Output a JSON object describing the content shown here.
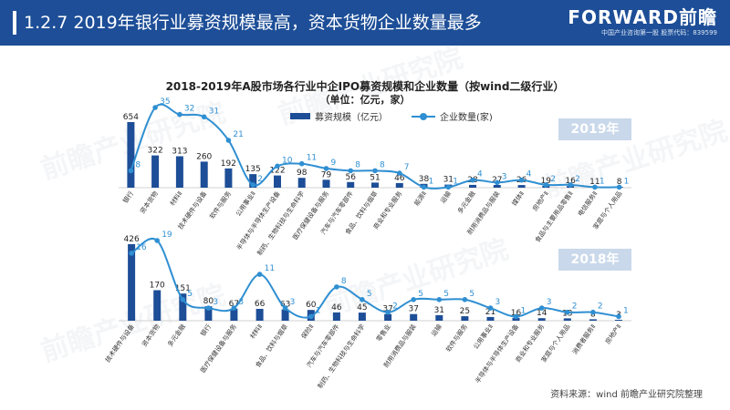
{
  "header": {
    "title": "1.2.7 2019年银行业募资规模最高，资本货物企业数量最多",
    "logo_brand": "FORWARD前瞻",
    "logo_tag": "中国产业咨询第一股  股票代码：839599"
  },
  "watermark_text": "前瞻产业研究院",
  "chart_title": "2018-2019年A股市场各行业中企IPO募资规模和企业数量（按wind二级行业）",
  "chart_subtitle": "（单位：亿元，家）",
  "legend": {
    "bar": "募资规模（亿元）",
    "line": "企业数量(家)"
  },
  "colors": {
    "bar": "#1d4e97",
    "line": "#2f8fd2",
    "header": "#1d4e97",
    "badge": "#c9d8ea"
  },
  "source": "资料来源：wind 前瞻产业研究院整理",
  "chart_data": [
    {
      "type": "bar",
      "year_label": "2019年",
      "categories": [
        "银行",
        "资本货物",
        "材料Ⅱ",
        "技术硬件与设备",
        "软件与服务",
        "公用事业Ⅱ",
        "半导体与半导体生产设备",
        "制药、生物科技与生命科学",
        "医疗保健设备与服务",
        "汽车与汽车零部件",
        "食品、饮料与烟草",
        "商业和专业服务",
        "能源Ⅱ",
        "运输",
        "多元金融",
        "耐用消费品与服装",
        "媒体Ⅱ",
        "房地产Ⅱ",
        "食品与主要用品零售Ⅱ",
        "电信服务Ⅱ",
        "家庭与个人用品"
      ],
      "series": [
        {
          "name": "募资规模（亿元）",
          "values": [
            654,
            322,
            313,
            260,
            192,
            135,
            122,
            98,
            79,
            56,
            51,
            46,
            38,
            31,
            28,
            27,
            26,
            19,
            16,
            11,
            8
          ]
        },
        {
          "name": "企业数量(家)",
          "values": [
            8,
            35,
            32,
            31,
            21,
            2,
            10,
            11,
            9,
            8,
            8,
            7,
            1,
            1,
            4,
            3,
            4,
            2,
            2,
            1,
            1
          ]
        }
      ]
    },
    {
      "type": "bar",
      "year_label": "2018年",
      "categories": [
        "技术硬件与设备",
        "资本货物",
        "多元金融",
        "银行",
        "医疗保健设备与服务",
        "材料Ⅱ",
        "食品、饮料与烟草",
        "保险Ⅱ",
        "汽车与汽车零部件",
        "制药、生物科技与生命科学",
        "零售业",
        "耐用消费品与服装",
        "运输",
        "软件与服务",
        "公用事业Ⅱ",
        "半导体与半导体生产设备",
        "商业和专业服务",
        "家庭与个人用品",
        "消费者服务Ⅱ",
        "房地产Ⅱ"
      ],
      "series": [
        {
          "name": "募资规模（亿元）",
          "values": [
            426,
            170,
            151,
            80,
            67,
            66,
            63,
            60,
            46,
            45,
            37,
            37,
            31,
            25,
            21,
            16,
            14,
            13,
            8,
            3
          ]
        },
        {
          "name": "企业数量(家)",
          "values": [
            16,
            19,
            5,
            3,
            3,
            11,
            3,
            1,
            8,
            5,
            2,
            5,
            5,
            5,
            3,
            1,
            3,
            2,
            2,
            1
          ]
        }
      ]
    }
  ]
}
